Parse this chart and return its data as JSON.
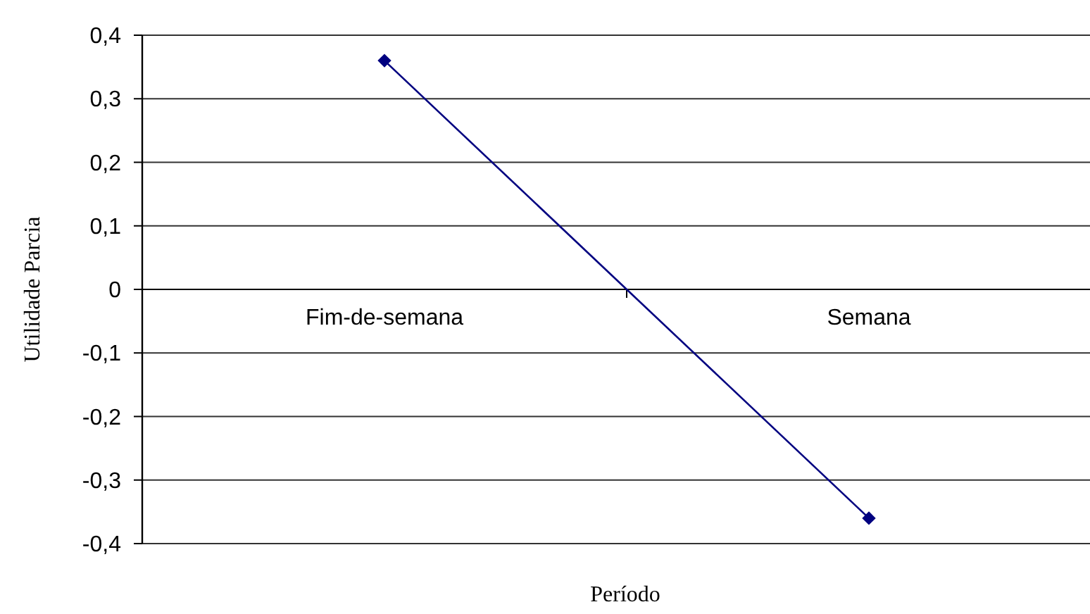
{
  "chart_data": {
    "type": "line",
    "xlabel": "Período",
    "ylabel": "Utilidade Parcia",
    "categories": [
      "Fim-de-semana",
      "Semana"
    ],
    "series": [
      {
        "color": "#000080",
        "values": [
          0.36,
          -0.36
        ]
      }
    ],
    "ylim": [
      -0.4,
      0.4
    ],
    "yticks": [
      {
        "value": -0.4,
        "label": "-0,4"
      },
      {
        "value": -0.3,
        "label": "-0,3"
      },
      {
        "value": -0.2,
        "label": "-0,2"
      },
      {
        "value": -0.1,
        "label": "-0,1"
      },
      0,
      {
        "value": 0.1,
        "label": "0,1"
      },
      {
        "value": 0.2,
        "label": "0,2"
      },
      {
        "value": 0.3,
        "label": "0,3"
      },
      {
        "value": 0.4,
        "label": "0,4"
      }
    ],
    "grid": "y",
    "marker": "diamond"
  }
}
